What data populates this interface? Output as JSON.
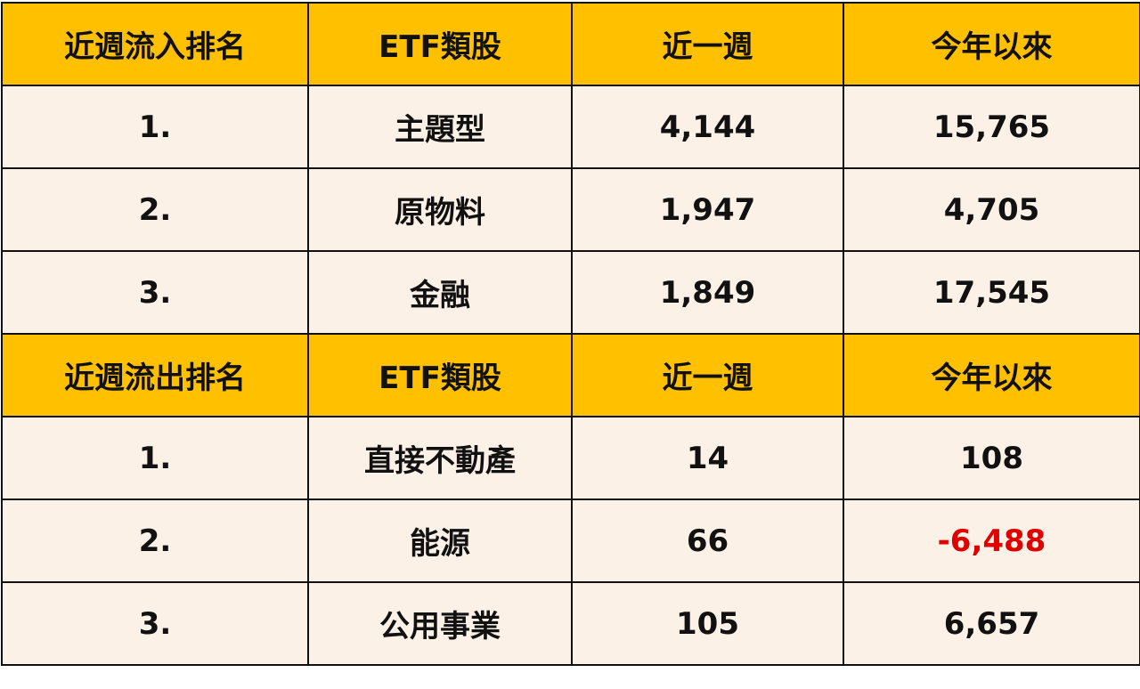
{
  "sections": [
    {
      "header": [
        "近週流入排名",
        "ETF類股",
        "近一週",
        "今年以來"
      ],
      "rows": [
        [
          "1.",
          "主題型",
          "4,144",
          "15,765"
        ],
        [
          "2.",
          "原物料",
          "1,947",
          "4,705"
        ],
        [
          "3.",
          "金融",
          "1,849",
          "17,545"
        ]
      ]
    },
    {
      "header": [
        "近週流出排名",
        "ETF類股",
        "近一週",
        "今年以來"
      ],
      "rows": [
        [
          "1.",
          "直接不動產",
          "14",
          "108"
        ],
        [
          "2.",
          "能源",
          "66",
          "-6,488"
        ],
        [
          "3.",
          "公用事業",
          "105",
          "6,657"
        ]
      ]
    }
  ]
}
